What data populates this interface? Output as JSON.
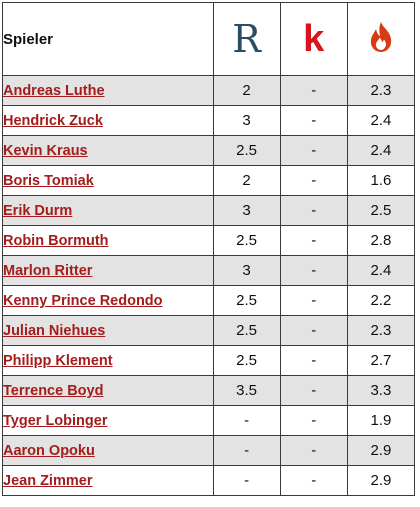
{
  "header": {
    "player_label": "Spieler",
    "source_r": "R",
    "source_k": "k",
    "source_f_icon": "flame-icon",
    "colors": {
      "link": "#a51c1c",
      "source_r": "#2b4d63",
      "source_k": "#d8141e",
      "flame": "#d83a14",
      "row_shade": "#e3e3e3"
    }
  },
  "players": [
    {
      "name": "Andreas Luthe",
      "r": "2",
      "k": "-",
      "f": "2.3"
    },
    {
      "name": "Hendrick Zuck",
      "r": "3",
      "k": "-",
      "f": "2.4"
    },
    {
      "name": "Kevin Kraus",
      "r": "2.5",
      "k": "-",
      "f": "2.4"
    },
    {
      "name": "Boris Tomiak",
      "r": "2",
      "k": "-",
      "f": "1.6"
    },
    {
      "name": "Erik Durm",
      "r": "3",
      "k": "-",
      "f": "2.5"
    },
    {
      "name": "Robin Bormuth",
      "r": "2.5",
      "k": "-",
      "f": "2.8"
    },
    {
      "name": "Marlon Ritter",
      "r": "3",
      "k": "-",
      "f": "2.4"
    },
    {
      "name": "Kenny Prince Redondo",
      "r": "2.5",
      "k": "-",
      "f": "2.2"
    },
    {
      "name": "Julian Niehues",
      "r": "2.5",
      "k": "-",
      "f": "2.3"
    },
    {
      "name": "Philipp Klement",
      "r": "2.5",
      "k": "-",
      "f": "2.7"
    },
    {
      "name": "Terrence Boyd",
      "r": "3.5",
      "k": "-",
      "f": "3.3"
    },
    {
      "name": "Tyger Lobinger",
      "r": "-",
      "k": "-",
      "f": "1.9"
    },
    {
      "name": "Aaron Opoku",
      "r": "-",
      "k": "-",
      "f": "2.9"
    },
    {
      "name": "Jean Zimmer",
      "r": "-",
      "k": "-",
      "f": "2.9"
    }
  ]
}
